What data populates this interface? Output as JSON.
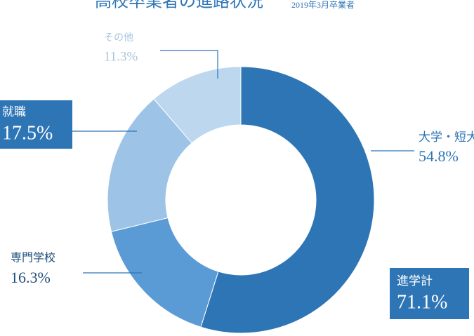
{
  "chart_data": {
    "type": "pie",
    "title": "高校卒業者の進路状況",
    "subtitle": "2019年3月卒業者",
    "categories": [
      "大学・短大",
      "専門学校",
      "就職",
      "その他"
    ],
    "values": [
      54.8,
      16.3,
      17.5,
      11.3
    ],
    "value_labels": [
      "54.8%",
      "16.3%",
      "17.5%",
      "11.3%"
    ],
    "colors": [
      "#2e75b6",
      "#5b9bd5",
      "#9dc3e6",
      "#bdd7ee"
    ],
    "annotations": [
      {
        "label": "進学計",
        "value": 71.1,
        "value_label": "71.1%"
      }
    ]
  }
}
